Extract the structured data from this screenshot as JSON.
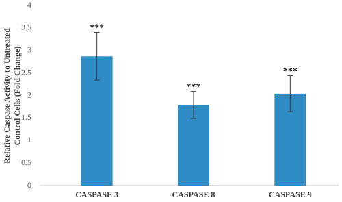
{
  "chart_data": {
    "type": "bar",
    "ylabel": [
      "Relative Caspase Activity to Untreated",
      "Control Cells (Fold Change)"
    ],
    "categories": [
      "CASPASE 3",
      "CASPASE 8",
      "CASPASE 9"
    ],
    "values": [
      2.87,
      1.79,
      2.04
    ],
    "errors": [
      0.53,
      0.3,
      0.4
    ],
    "annotations": [
      "***",
      "***",
      "***"
    ],
    "color": "#2e8bc4",
    "ylim": [
      0,
      4
    ],
    "yticks": [
      0,
      0.5,
      1,
      1.5,
      2,
      2.5,
      3,
      3.5,
      4
    ],
    "grid": false
  }
}
